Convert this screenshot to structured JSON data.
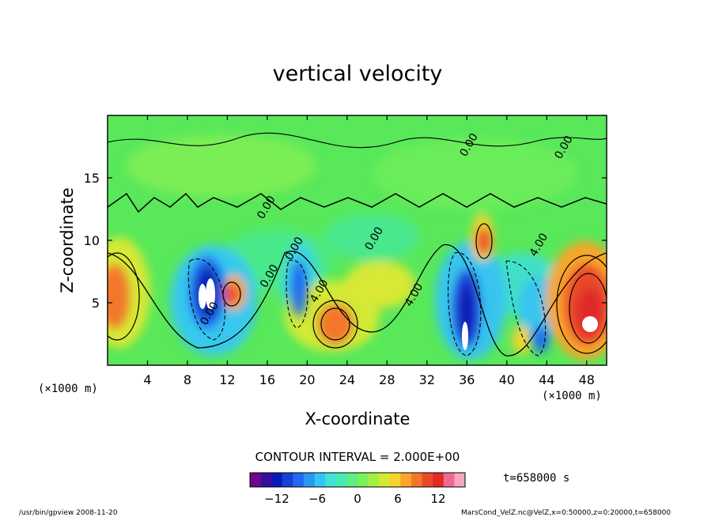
{
  "chart_data": {
    "type": "heatmap",
    "title": "vertical velocity",
    "xlabel": "X-coordinate",
    "ylabel": "Z-coordinate",
    "x_unit_left": "(×1000 m)",
    "x_unit_right": "(×1000 m)",
    "xlim": [
      0,
      50
    ],
    "ylim": [
      0,
      20
    ],
    "x_ticks": [
      4,
      8,
      12,
      16,
      20,
      24,
      28,
      32,
      36,
      40,
      44,
      48
    ],
    "y_ticks": [
      5,
      10,
      15
    ],
    "contour_interval_label": "CONTOUR INTERVAL = 2.000E+00",
    "time_label": "t=658000 s",
    "contour_labels": [
      {
        "x": 10.5,
        "y": 4.0,
        "text": "0.00"
      },
      {
        "x": 16.5,
        "y": 7.0,
        "text": "0.00"
      },
      {
        "x": 19.0,
        "y": 9.2,
        "text": "0.00"
      },
      {
        "x": 21.5,
        "y": 5.8,
        "text": "4.00"
      },
      {
        "x": 27.0,
        "y": 10.0,
        "text": "0.00"
      },
      {
        "x": 31.0,
        "y": 5.5,
        "text": "4.00"
      },
      {
        "x": 36.5,
        "y": 17.5,
        "text": "0.00"
      },
      {
        "x": 43.5,
        "y": 9.5,
        "text": "4.00"
      },
      {
        "x": 46.0,
        "y": 17.3,
        "text": "0.00"
      },
      {
        "x": 16.2,
        "y": 12.5,
        "text": "0.00"
      }
    ],
    "features": [
      {
        "x": 1.0,
        "y": 5.5,
        "value": 8
      },
      {
        "x": 9.8,
        "y": 5.5,
        "value": -14
      },
      {
        "x": 12.7,
        "y": 5.8,
        "value": 8
      },
      {
        "x": 19.0,
        "y": 5.5,
        "value": -8
      },
      {
        "x": 23.0,
        "y": 3.0,
        "value": 10
      },
      {
        "x": 35.5,
        "y": 3.0,
        "value": -14
      },
      {
        "x": 37.5,
        "y": 10.0,
        "value": 8
      },
      {
        "x": 42.0,
        "y": 7.0,
        "value": -4
      },
      {
        "x": 48.5,
        "y": 5.5,
        "value": 14
      }
    ],
    "colorbar": {
      "ticks": [
        -12,
        -6,
        0,
        6,
        12
      ],
      "range": [
        -16,
        16
      ],
      "colors": [
        "#6a0a8a",
        "#3a0d9c",
        "#0a1ab4",
        "#1a3fd6",
        "#1f6af0",
        "#2a96f4",
        "#35c3ef",
        "#3fe3d8",
        "#45ecaf",
        "#5aef82",
        "#7af05a",
        "#a5ef3f",
        "#d2ea35",
        "#f3d42e",
        "#f7a62a",
        "#f3762a",
        "#ea4a2a",
        "#e02a2a",
        "#ee6b8e",
        "#f8a6c0"
      ]
    }
  },
  "footer": {
    "left": "/usr/bin/gpview  2008-11-20",
    "right": "MarsCond_VelZ.nc@VelZ,x=0:50000,z=0:20000,t=658000"
  }
}
